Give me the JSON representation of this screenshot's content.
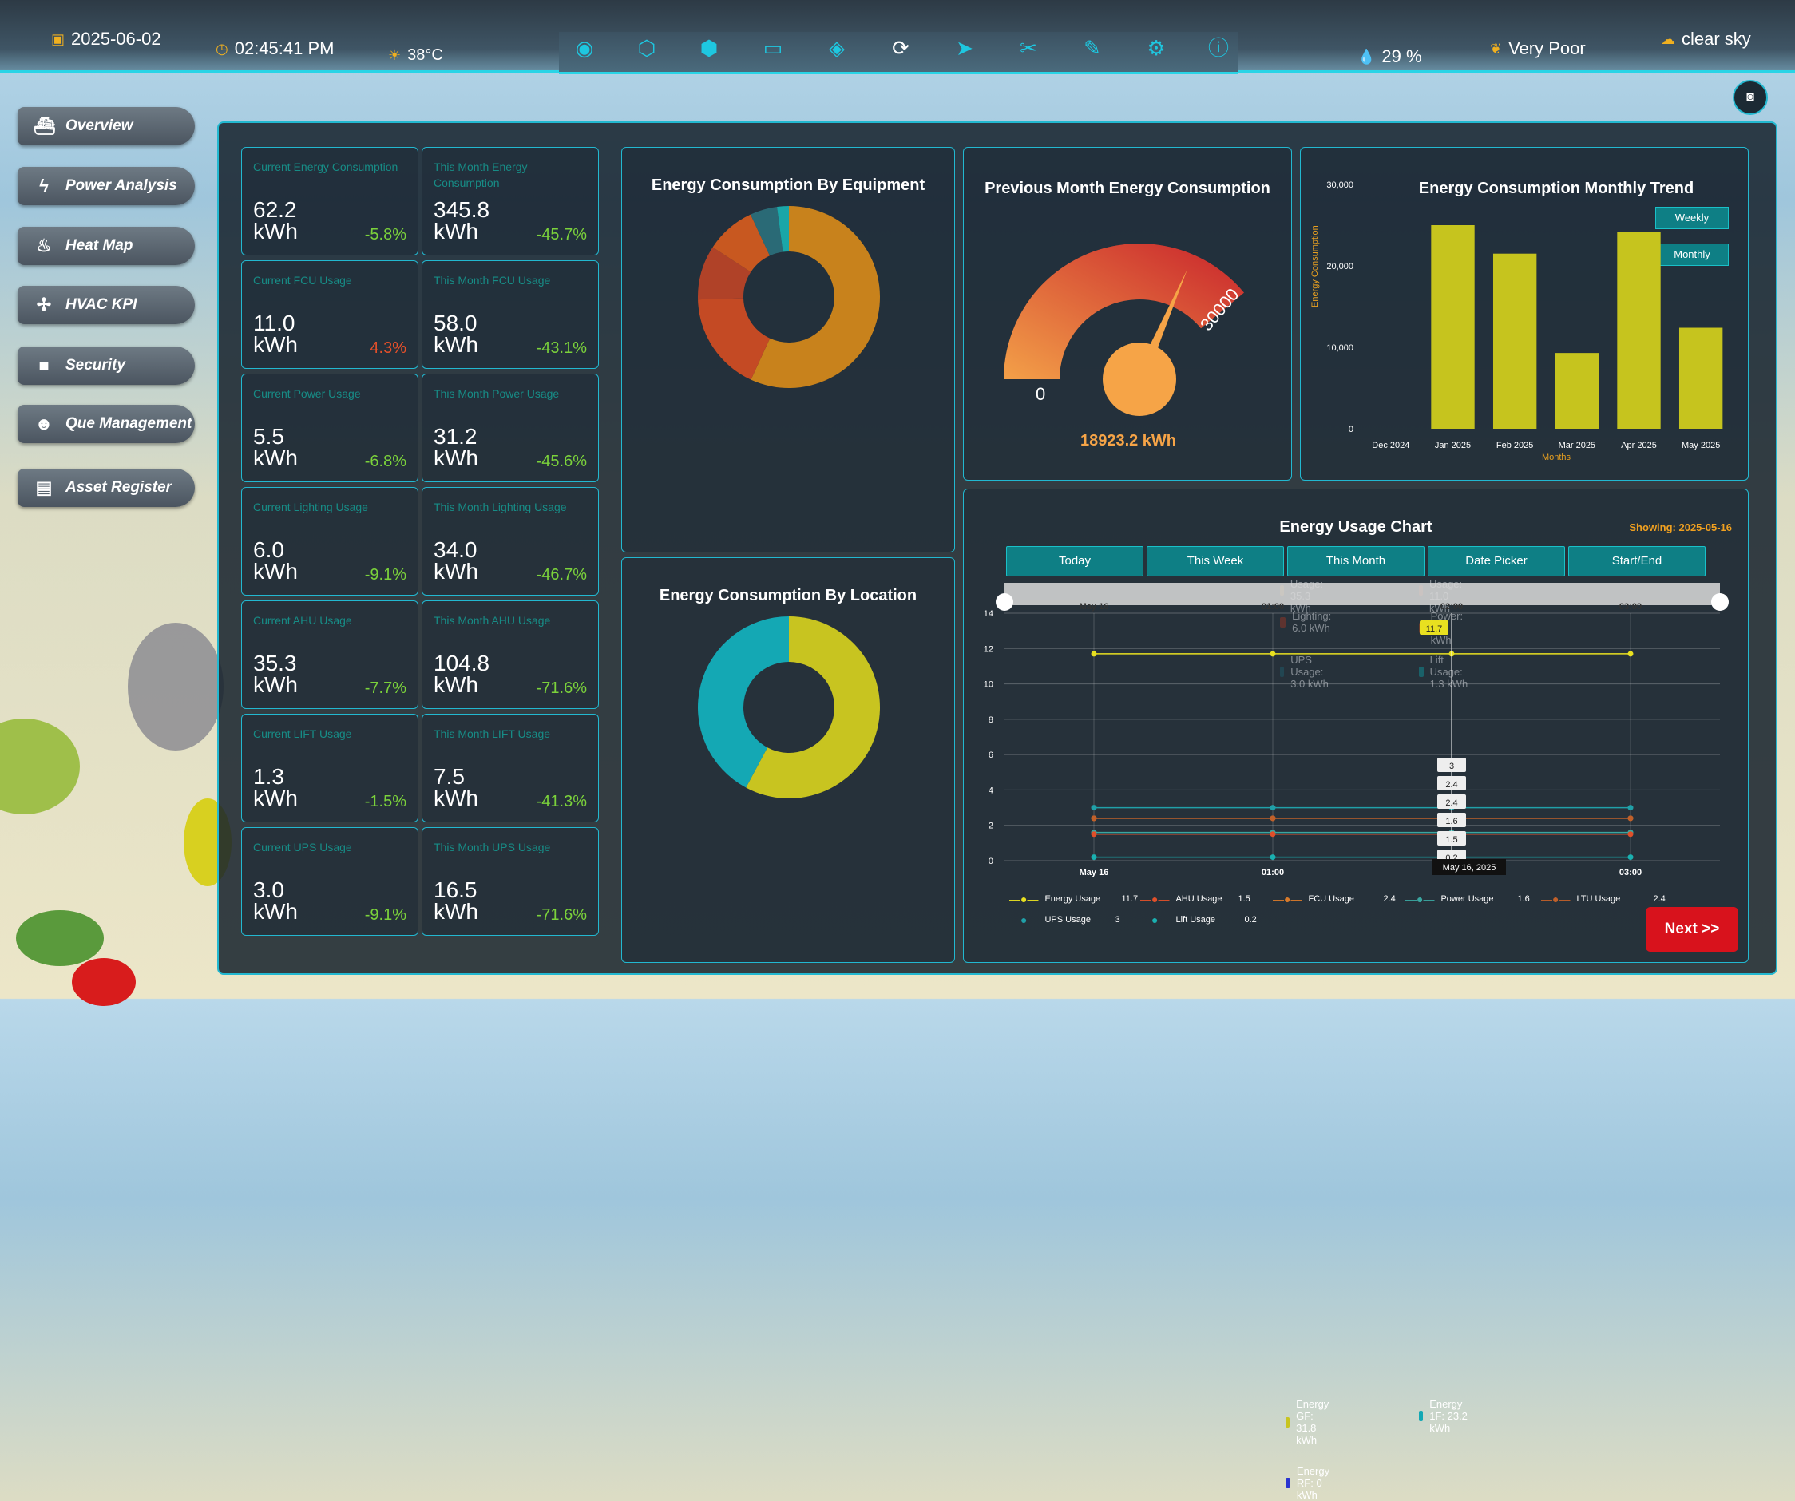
{
  "topbar": {
    "date": "2025-06-02",
    "time": "02:45:41 PM",
    "temperature": "38°C",
    "humidity": "29 %",
    "air_quality": "Very Poor",
    "weather": "clear sky",
    "toolbar_icons": [
      "eye-icon",
      "layers-icon",
      "cube-icon",
      "tag-icon",
      "drop-icon",
      "refresh-icon",
      "cursor-icon",
      "scissors-icon",
      "brush-icon",
      "gear-icon",
      "info-icon"
    ]
  },
  "nav": [
    {
      "label": "Overview",
      "icon": "ship-icon"
    },
    {
      "label": "Power Analysis",
      "icon": "bolt-icon"
    },
    {
      "label": "Heat Map",
      "icon": "flame-icon"
    },
    {
      "label": "HVAC KPI",
      "icon": "fan-icon"
    },
    {
      "label": "Security",
      "icon": "camera-icon"
    },
    {
      "label": "Que Management",
      "icon": "people-icon"
    },
    {
      "label": "Asset Register",
      "icon": "list-icon"
    }
  ],
  "kpis": [
    {
      "title": "Current Energy Consumption",
      "value": "62.2",
      "unit": "kWh",
      "pct": "-5.8%",
      "pct_color": "#7bd23b"
    },
    {
      "title": "This Month Energy Consumption",
      "value": "345.8",
      "unit": "kWh",
      "pct": "-45.7%",
      "pct_color": "#7bd23b"
    },
    {
      "title": "Current FCU Usage",
      "value": "11.0",
      "unit": "kWh",
      "pct": "4.3%",
      "pct_color": "#e6502a"
    },
    {
      "title": "This Month FCU Usage",
      "value": "58.0",
      "unit": "kWh",
      "pct": "-43.1%",
      "pct_color": "#7bd23b"
    },
    {
      "title": "Current Power Usage",
      "value": "5.5",
      "unit": "kWh",
      "pct": "-6.8%",
      "pct_color": "#7bd23b"
    },
    {
      "title": "This Month Power Usage",
      "value": "31.2",
      "unit": "kWh",
      "pct": "-45.6%",
      "pct_color": "#7bd23b"
    },
    {
      "title": "Current Lighting Usage",
      "value": "6.0",
      "unit": "kWh",
      "pct": "-9.1%",
      "pct_color": "#7bd23b"
    },
    {
      "title": "This Month Lighting Usage",
      "value": "34.0",
      "unit": "kWh",
      "pct": "-46.7%",
      "pct_color": "#7bd23b"
    },
    {
      "title": "Current AHU Usage",
      "value": "35.3",
      "unit": "kWh",
      "pct": "-7.7%",
      "pct_color": "#7bd23b"
    },
    {
      "title": "This Month AHU Usage",
      "value": "104.8",
      "unit": "kWh",
      "pct": "-71.6%",
      "pct_color": "#7bd23b"
    },
    {
      "title": "Current LIFT Usage",
      "value": "1.3",
      "unit": "kWh",
      "pct": "-1.5%",
      "pct_color": "#7bd23b"
    },
    {
      "title": "This Month LIFT Usage",
      "value": "7.5",
      "unit": "kWh",
      "pct": "-41.3%",
      "pct_color": "#7bd23b"
    },
    {
      "title": "Current UPS Usage",
      "value": "3.0",
      "unit": "kWh",
      "pct": "-9.1%",
      "pct_color": "#7bd23b"
    },
    {
      "title": "This Month UPS Usage",
      "value": "16.5",
      "unit": "kWh",
      "pct": "-71.6%",
      "pct_color": "#7bd23b"
    }
  ],
  "equipment": {
    "title": "Energy Consumption By Equipment",
    "legend": [
      "AHU Usage: 35.3 kWh",
      "FCU Usage: 11.0 kWh",
      "Lighting: 6.0 kWh",
      "Power: 5.5 kWh",
      "UPS Usage: 3.0 kWh",
      "Lift Usage: 1.3 kWh"
    ]
  },
  "location": {
    "title": "Energy Consumption By Location",
    "legend": [
      "Energy GF: 31.8 kWh",
      "Energy 1F: 23.2 kWh",
      "Energy RF: 0 kWh"
    ]
  },
  "gauge": {
    "title": "Previous Month Energy Consumption",
    "min": "0",
    "max": "30000",
    "value": "18923.2 kWh"
  },
  "trend": {
    "title": "Energy Consumption Monthly Trend",
    "weekly": "Weekly",
    "monthly": "Monthly",
    "ylabel": "Energy Consumption",
    "xlabel": "Months",
    "yticks": [
      "30,000",
      "20,000",
      "10,000",
      "0"
    ]
  },
  "usage": {
    "title": "Energy Usage Chart",
    "showing": "Showing: 2025-05-16",
    "tabs": [
      "Today",
      "This Week",
      "This Month",
      "Date Picker",
      "Start/End"
    ],
    "top_ticks": [
      "May 16",
      "01:00",
      "02:00",
      "03:00"
    ],
    "bottom_ticks": [
      "May 16",
      "01:00",
      "03:00"
    ],
    "yticks": [
      "14",
      "12",
      "10",
      "8",
      "6",
      "4",
      "2",
      "0"
    ],
    "tooltip_date": "May 16, 2025",
    "value_tags": [
      "11.7",
      "3",
      "2.4",
      "2.4",
      "1.6",
      "1.5",
      "0.2"
    ],
    "legend": [
      {
        "name": "Energy Usage",
        "value": "11.7",
        "color": "#e8e020"
      },
      {
        "name": "AHU Usage",
        "value": "1.5",
        "color": "#e0502a"
      },
      {
        "name": "FCU Usage",
        "value": "2.4",
        "color": "#d87a2a"
      },
      {
        "name": "Power Usage",
        "value": "1.6",
        "color": "#3aa6a0"
      },
      {
        "name": "LTU Usage",
        "value": "2.4",
        "color": "#c0602a"
      },
      {
        "name": "UPS Usage",
        "value": "3",
        "color": "#20a0a8"
      },
      {
        "name": "Lift Usage",
        "value": "0.2",
        "color": "#1ab0b0"
      }
    ]
  },
  "next_label": "Next >>",
  "chart_data": [
    {
      "type": "pie",
      "title": "Energy Consumption By Equipment",
      "categories": [
        "AHU Usage",
        "FCU Usage",
        "Lighting",
        "Power",
        "UPS Usage",
        "Lift Usage"
      ],
      "values": [
        35.3,
        11.0,
        6.0,
        5.5,
        3.0,
        1.3
      ],
      "colors": [
        "#c8821c",
        "#c44a24",
        "#b04228",
        "#c85820",
        "#2a6a76",
        "#1aa6a8"
      ]
    },
    {
      "type": "pie",
      "title": "Energy Consumption By Location",
      "categories": [
        "Energy GF",
        "Energy 1F",
        "Energy RF"
      ],
      "values": [
        31.8,
        23.2,
        0
      ],
      "colors": [
        "#c8c420",
        "#14a8b4",
        "#2a34d0"
      ]
    },
    {
      "type": "bar",
      "title": "Energy Consumption Monthly Trend",
      "categories": [
        "Dec 2024",
        "Jan 2025",
        "Feb 2025",
        "Mar 2025",
        "Apr 2025",
        "May 2025"
      ],
      "values": [
        0,
        25000,
        21500,
        9300,
        24200,
        12400
      ],
      "xlabel": "Months",
      "ylabel": "Energy Consumption",
      "ylim": [
        0,
        30000
      ]
    },
    {
      "type": "line",
      "title": "Energy Usage Chart",
      "x": [
        "May 16",
        "01:00",
        "02:00",
        "03:00"
      ],
      "series": [
        {
          "name": "Energy Usage",
          "values": [
            11.7,
            11.7,
            11.7,
            11.7
          ]
        },
        {
          "name": "UPS Usage",
          "values": [
            3,
            3,
            3,
            3
          ]
        },
        {
          "name": "FCU Usage",
          "values": [
            2.4,
            2.4,
            2.4,
            2.4
          ]
        },
        {
          "name": "LTU Usage",
          "values": [
            2.4,
            2.4,
            2.4,
            2.4
          ]
        },
        {
          "name": "Power Usage",
          "values": [
            1.6,
            1.6,
            1.6,
            1.6
          ]
        },
        {
          "name": "AHU Usage",
          "values": [
            1.5,
            1.5,
            1.5,
            1.5
          ]
        },
        {
          "name": "Lift Usage",
          "values": [
            0.2,
            0.2,
            0.2,
            0.2
          ]
        }
      ],
      "ylim": [
        0,
        14
      ]
    }
  ]
}
